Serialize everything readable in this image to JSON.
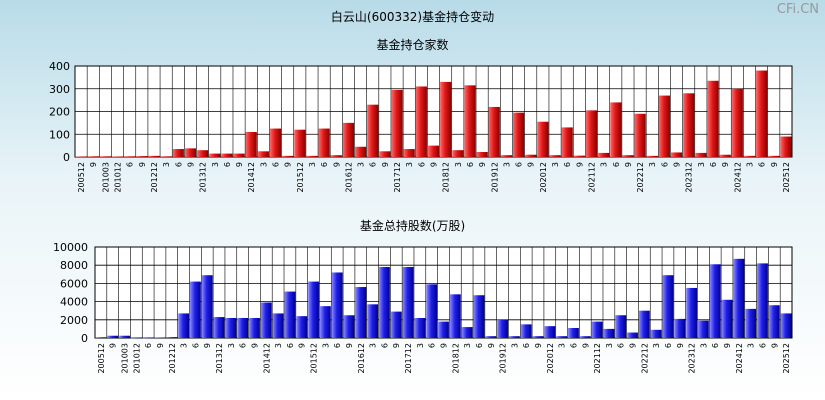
{
  "page": {
    "title": "白云山(600332)基金持仓变动",
    "watermark": "CFi.CN"
  },
  "chart_data": [
    {
      "type": "bar",
      "title": "基金持仓家数",
      "ylim": [
        0,
        400
      ],
      "yticks": [
        0,
        100,
        200,
        300,
        400
      ],
      "grid": true,
      "colors": {
        "tall": "#d8141c",
        "short": "#ff5050"
      },
      "tick_labels": [
        "200512",
        "9",
        "201003",
        "201012",
        "6",
        "9",
        "201212",
        "3",
        "6",
        "9",
        "201312",
        "3",
        "6",
        "9",
        "201412",
        "3",
        "6",
        "9",
        "201512",
        "3",
        "6",
        "9",
        "201612",
        "3",
        "6",
        "9",
        "201712",
        "3",
        "6",
        "9",
        "201812",
        "3",
        "6",
        "9",
        "201912",
        "3",
        "6",
        "9",
        "202012",
        "3",
        "6",
        "9",
        "202112",
        "3",
        "6",
        "9",
        "202212",
        "3",
        "6",
        "9",
        "202312",
        "3",
        "6",
        "9",
        "202412",
        "3",
        "6",
        "9",
        "202512"
      ],
      "values": [
        2,
        3,
        3,
        2,
        3,
        4,
        5,
        3,
        35,
        38,
        30,
        15,
        15,
        15,
        110,
        25,
        125,
        5,
        120,
        5,
        125,
        8,
        150,
        45,
        230,
        25,
        295,
        35,
        310,
        50,
        330,
        30,
        315,
        22,
        220,
        8,
        195,
        10,
        155,
        8,
        130,
        6,
        205,
        18,
        240,
        8,
        190,
        5,
        270,
        20,
        280,
        18,
        335,
        10,
        300,
        5,
        380,
        5,
        90
      ]
    },
    {
      "type": "bar",
      "title": "基金总持股数(万股)",
      "ylim": [
        0,
        10000
      ],
      "yticks": [
        0,
        2000,
        4000,
        6000,
        8000,
        10000
      ],
      "grid": true,
      "colors": {
        "tall": "#2020e0",
        "short": "#5a5aff"
      },
      "tick_labels": [
        "200512",
        "9",
        "201003",
        "201012",
        "6",
        "9",
        "201212",
        "3",
        "6",
        "9",
        "201312",
        "3",
        "6",
        "9",
        "201412",
        "3",
        "6",
        "9",
        "201512",
        "3",
        "6",
        "9",
        "201612",
        "3",
        "6",
        "9",
        "201712",
        "3",
        "6",
        "9",
        "201812",
        "3",
        "6",
        "9",
        "201912",
        "3",
        "6",
        "9",
        "202012",
        "3",
        "6",
        "9",
        "202112",
        "3",
        "6",
        "9",
        "202212",
        "3",
        "6",
        "9",
        "202312",
        "3",
        "6",
        "9",
        "202412",
        "3",
        "6",
        "9",
        "202512"
      ],
      "values": [
        80,
        250,
        250,
        30,
        30,
        50,
        100,
        2700,
        6200,
        6900,
        2300,
        2200,
        2200,
        2200,
        3900,
        2700,
        5100,
        2400,
        6200,
        3500,
        7200,
        2500,
        5600,
        3700,
        7800,
        2900,
        7800,
        2200,
        5900,
        1800,
        4800,
        1200,
        4700,
        200,
        2000,
        200,
        1500,
        200,
        1300,
        200,
        1100,
        200,
        1800,
        1000,
        2500,
        600,
        3000,
        900,
        6900,
        2100,
        5500,
        1900,
        8100,
        4200,
        8700,
        3200,
        8200,
        3600,
        2700
      ]
    }
  ]
}
